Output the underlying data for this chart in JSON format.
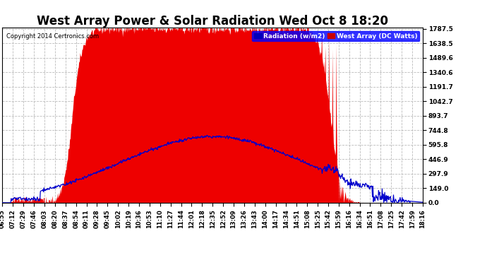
{
  "title": "West Array Power & Solar Radiation Wed Oct 8 18:20",
  "copyright": "Copyright 2014 Certronics.com",
  "legend_labels": [
    "Radiation (w/m2)",
    "West Array (DC Watts)"
  ],
  "legend_colors_bg": [
    "#0000bb",
    "#cc0000"
  ],
  "legend_text_colors": [
    "#ffffff",
    "#ffffff"
  ],
  "yticks": [
    0.0,
    149.0,
    297.9,
    446.9,
    595.8,
    744.8,
    893.7,
    1042.7,
    1191.7,
    1340.6,
    1489.6,
    1638.5,
    1787.5
  ],
  "ymax": 1787.5,
  "ymin": 0.0,
  "background_color": "#ffffff",
  "plot_bg_color": "#ffffff",
  "grid_color": "#bbbbbb",
  "red_fill_color": "#ee0000",
  "blue_line_color": "#0000cc",
  "title_fontsize": 12,
  "xtick_labels": [
    "06:55",
    "07:12",
    "07:29",
    "07:46",
    "08:03",
    "08:20",
    "08:37",
    "08:54",
    "09:11",
    "09:28",
    "09:45",
    "10:02",
    "10:19",
    "10:36",
    "10:53",
    "11:10",
    "11:27",
    "11:44",
    "12:01",
    "12:18",
    "12:35",
    "12:52",
    "13:09",
    "13:26",
    "13:43",
    "14:00",
    "14:17",
    "14:34",
    "14:51",
    "15:08",
    "15:25",
    "15:42",
    "15:59",
    "16:16",
    "16:34",
    "16:51",
    "17:08",
    "17:25",
    "17:42",
    "17:59",
    "18:16"
  ]
}
